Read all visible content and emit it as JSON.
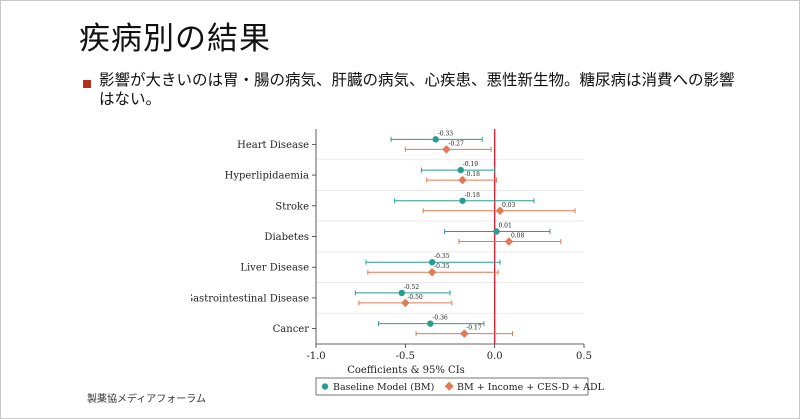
{
  "slide": {
    "title": "疾病別の結果",
    "bullet_text": "影響が大きいのは胃・腸の病気、肝臓の病気、心疾患、悪性新生物。糖尿病は消費への影響はない。",
    "footer": "製薬協メディアフォーラム"
  },
  "colors": {
    "bullet": "#b5301b",
    "baseline_series": "#2a9d8f",
    "adjusted_series": "#e07b53",
    "zero_line": "#e0192b"
  },
  "chart_data": {
    "type": "scatter",
    "title": "",
    "xlabel": "Coefficients & 95% CIs",
    "ylabel": "",
    "xlim": [
      -1.0,
      0.5
    ],
    "xticks": [
      -1.0,
      -0.5,
      0.0,
      0.5
    ],
    "xtick_labels": [
      "-1.0",
      "-0.5",
      "0.0",
      "0.5"
    ],
    "reference_line": 0.0,
    "categories": [
      "Heart Disease",
      "Hyperlipidaemia",
      "Stroke",
      "Diabetes",
      "Liver Disease",
      "Gastrointestinal Disease",
      "Cancer"
    ],
    "series": [
      {
        "name": "Baseline Model (BM)",
        "marker": "circle",
        "values": [
          -0.33,
          -0.19,
          -0.18,
          0.01,
          -0.35,
          -0.52,
          -0.36
        ],
        "labels": [
          "-0.33",
          "-0.19",
          "-0.18",
          "0.01",
          "-0.35",
          "-0.52",
          "-0.36"
        ],
        "ci_low": [
          -0.58,
          -0.41,
          -0.56,
          -0.28,
          -0.72,
          -0.78,
          -0.65
        ],
        "ci_high": [
          -0.07,
          0.0,
          0.22,
          0.31,
          0.03,
          -0.25,
          -0.06
        ]
      },
      {
        "name": "BM + Income + CES-D + ADL",
        "marker": "diamond",
        "values": [
          -0.27,
          -0.18,
          0.03,
          0.08,
          -0.35,
          -0.5,
          -0.17
        ],
        "labels": [
          "-0.27",
          "-0.18",
          "0.03",
          "0.08",
          "-0.35",
          "-0.50",
          "-0.17"
        ],
        "ci_low": [
          -0.5,
          -0.38,
          -0.4,
          -0.2,
          -0.71,
          -0.76,
          -0.44
        ],
        "ci_high": [
          -0.02,
          0.01,
          0.45,
          0.37,
          0.02,
          -0.24,
          0.1
        ]
      }
    ],
    "legend_position": "bottom"
  }
}
